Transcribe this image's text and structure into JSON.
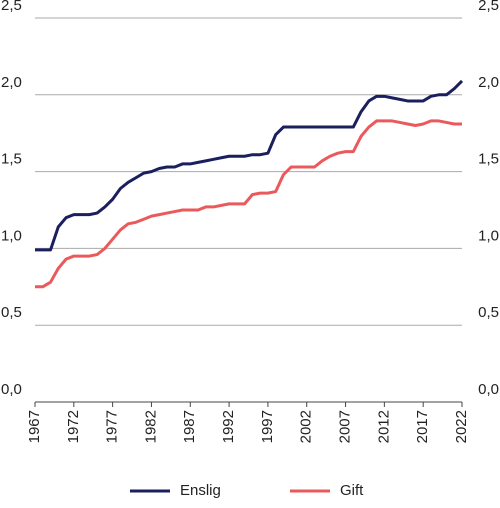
{
  "chart_data": {
    "type": "line",
    "x": [
      1967,
      1968,
      1969,
      1970,
      1971,
      1972,
      1973,
      1974,
      1975,
      1976,
      1977,
      1978,
      1979,
      1980,
      1981,
      1982,
      1983,
      1984,
      1985,
      1986,
      1987,
      1988,
      1989,
      1990,
      1991,
      1992,
      1993,
      1994,
      1995,
      1996,
      1997,
      1998,
      1999,
      2000,
      2001,
      2002,
      2003,
      2004,
      2005,
      2006,
      2007,
      2008,
      2009,
      2010,
      2011,
      2012,
      2013,
      2014,
      2015,
      2016,
      2017,
      2018,
      2019,
      2020,
      2021,
      2022
    ],
    "series": [
      {
        "name": "Enslig",
        "color": "#1b1f5e",
        "values": [
          0.99,
          0.99,
          0.99,
          1.14,
          1.2,
          1.22,
          1.22,
          1.22,
          1.23,
          1.27,
          1.32,
          1.39,
          1.43,
          1.46,
          1.49,
          1.5,
          1.52,
          1.53,
          1.53,
          1.55,
          1.55,
          1.56,
          1.57,
          1.58,
          1.59,
          1.6,
          1.6,
          1.6,
          1.61,
          1.61,
          1.62,
          1.74,
          1.79,
          1.79,
          1.79,
          1.79,
          1.79,
          1.79,
          1.79,
          1.79,
          1.79,
          1.79,
          1.89,
          1.96,
          1.99,
          1.99,
          1.98,
          1.97,
          1.96,
          1.96,
          1.96,
          1.99,
          2.0,
          2.0,
          2.04,
          2.09
        ]
      },
      {
        "name": "Gift",
        "color": "#ea5a5c",
        "values": [
          0.75,
          0.75,
          0.78,
          0.87,
          0.93,
          0.95,
          0.95,
          0.95,
          0.96,
          1.0,
          1.06,
          1.12,
          1.16,
          1.17,
          1.19,
          1.21,
          1.22,
          1.23,
          1.24,
          1.25,
          1.25,
          1.25,
          1.27,
          1.27,
          1.28,
          1.29,
          1.29,
          1.29,
          1.35,
          1.36,
          1.36,
          1.37,
          1.48,
          1.53,
          1.53,
          1.53,
          1.53,
          1.57,
          1.6,
          1.62,
          1.63,
          1.63,
          1.73,
          1.79,
          1.83,
          1.83,
          1.83,
          1.82,
          1.81,
          1.8,
          1.81,
          1.83,
          1.83,
          1.82,
          1.81,
          1.81
        ]
      }
    ],
    "xlim": [
      1967,
      2022
    ],
    "xticks": [
      1967,
      1972,
      1977,
      1982,
      1987,
      1992,
      1997,
      2002,
      2007,
      2012,
      2017,
      2022
    ],
    "ylim": [
      0,
      2.5
    ],
    "yticks": [
      {
        "value": 0,
        "label": "0,0"
      },
      {
        "value": 0.5,
        "label": "0,5"
      },
      {
        "value": 1,
        "label": "1,0"
      },
      {
        "value": 1.5,
        "label": "1,5"
      },
      {
        "value": 2,
        "label": "2,0"
      },
      {
        "value": 2.5,
        "label": "2,5"
      }
    ],
    "grid": true,
    "legend": "bottom"
  }
}
